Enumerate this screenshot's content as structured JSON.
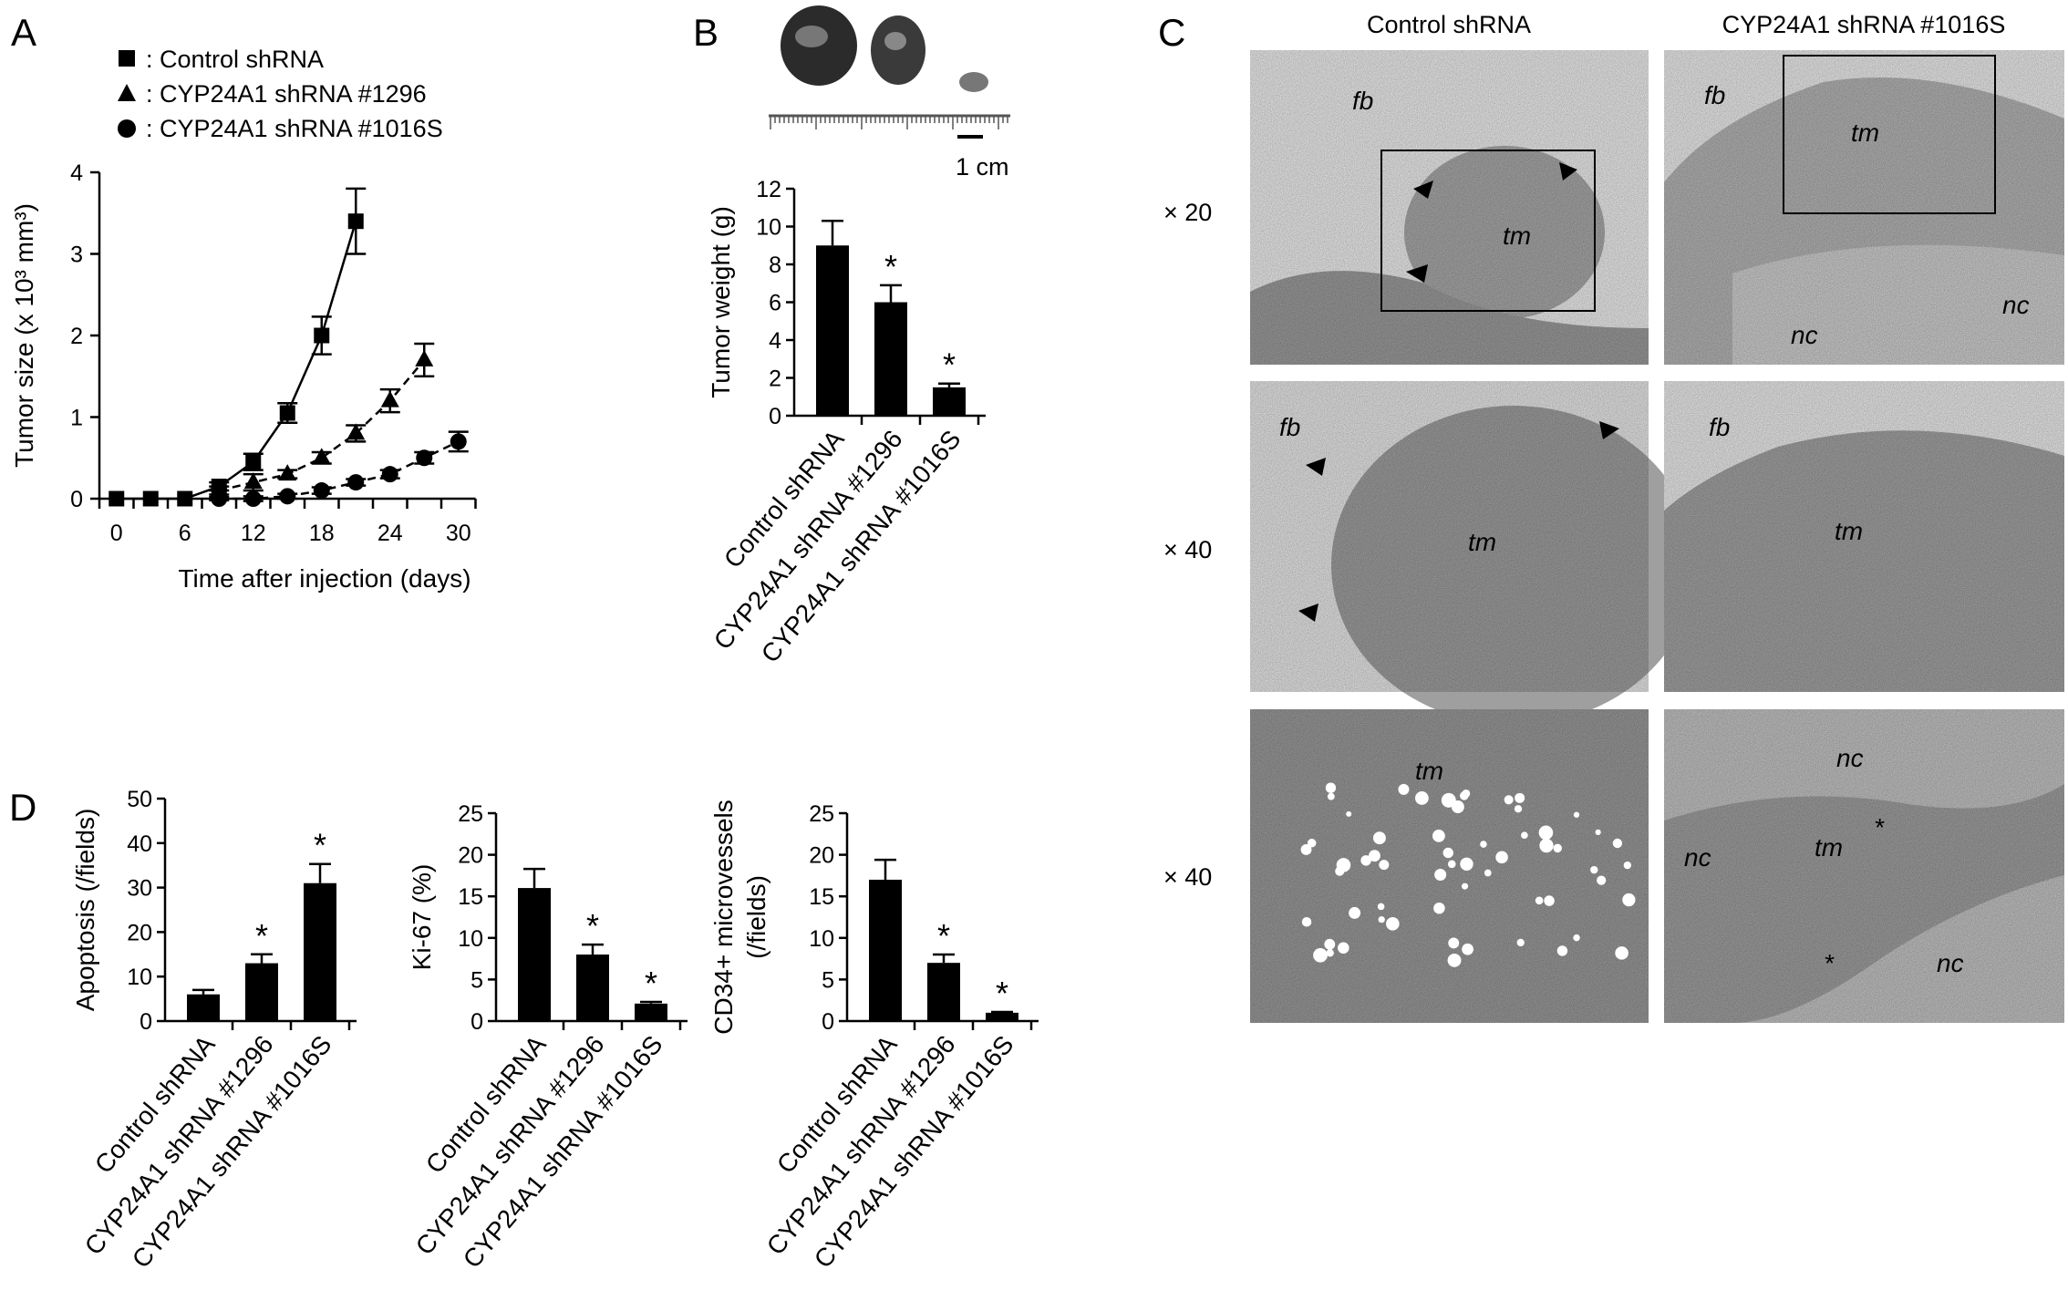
{
  "panels": {
    "a": "A",
    "b": "B",
    "c": "C",
    "d": "D"
  },
  "legend": [
    {
      "marker": "square",
      "label": ": Control shRNA"
    },
    {
      "marker": "triangle",
      "label": ": CYP24A1 shRNA #1296"
    },
    {
      "marker": "circle",
      "label": ": CYP24A1 shRNA #1016S"
    }
  ],
  "scale_bar": "1 cm",
  "histology": {
    "columns": [
      "Control shRNA",
      "CYP24A1 shRNA #1016S"
    ],
    "rows": [
      "× 20",
      "× 40",
      "× 40"
    ],
    "labels": {
      "fb": "fb",
      "tm": "tm",
      "nc": "nc",
      "star": "*"
    }
  },
  "chart_data": [
    {
      "id": "A",
      "type": "line",
      "xlabel": "Time after injection (days)",
      "ylabel": "Tumor size (x 10³ mm³)",
      "xticks": [
        0,
        6,
        12,
        18,
        24,
        30
      ],
      "yticks": [
        0,
        1,
        2,
        3,
        4
      ],
      "ylim": [
        0,
        4
      ],
      "series": [
        {
          "name": "Control shRNA",
          "marker": "square",
          "dash": false,
          "x": [
            0,
            3,
            6,
            9,
            12,
            15,
            18,
            21
          ],
          "y": [
            0,
            0,
            0,
            0.15,
            0.45,
            1.05,
            2.0,
            3.4
          ],
          "err": [
            0,
            0,
            0,
            0.05,
            0.1,
            0.12,
            0.23,
            0.4
          ]
        },
        {
          "name": "CYP24A1 shRNA #1296",
          "marker": "triangle",
          "dash": true,
          "x": [
            9,
            12,
            15,
            18,
            21,
            24,
            27
          ],
          "y": [
            0.1,
            0.2,
            0.3,
            0.5,
            0.8,
            1.2,
            1.7
          ],
          "err": [
            0.05,
            0.1,
            0.05,
            0.07,
            0.1,
            0.14,
            0.2
          ]
        },
        {
          "name": "CYP24A1 shRNA #1016S",
          "marker": "circle",
          "dash": true,
          "x": [
            9,
            12,
            15,
            18,
            21,
            24,
            27,
            30
          ],
          "y": [
            0,
            0,
            0.03,
            0.1,
            0.2,
            0.3,
            0.5,
            0.7
          ],
          "err": [
            0.02,
            0.03,
            0.03,
            0.04,
            0.04,
            0.05,
            0.07,
            0.12
          ]
        }
      ]
    },
    {
      "id": "B",
      "type": "bar",
      "ylabel": "Tumor weight (g)",
      "categories": [
        "Control shRNA",
        "CYP24A1 shRNA #1296",
        "CYP24A1 shRNA #1016S"
      ],
      "values": [
        9,
        6,
        1.5
      ],
      "err": [
        1.3,
        0.9,
        0.2
      ],
      "significance": [
        "",
        "*",
        "*"
      ],
      "yticks": [
        0,
        2,
        4,
        6,
        8,
        10,
        12
      ],
      "ylim": [
        0,
        12
      ]
    },
    {
      "id": "D1",
      "type": "bar",
      "ylabel": "Apoptosis (/fields)",
      "categories": [
        "Control shRNA",
        "CYP24A1 shRNA #1296",
        "CYP24A1 shRNA #1016S"
      ],
      "values": [
        6,
        13,
        31
      ],
      "err": [
        1,
        2,
        4.3
      ],
      "significance": [
        "",
        "*",
        "*"
      ],
      "yticks": [
        0,
        10,
        20,
        30,
        40,
        50
      ],
      "ylim": [
        0,
        50
      ]
    },
    {
      "id": "D2",
      "type": "bar",
      "ylabel": "Ki-67 (%)",
      "categories": [
        "Control shRNA",
        "CYP24A1 shRNA #1296",
        "CYP24A1 shRNA #1016S"
      ],
      "values": [
        16,
        8,
        2.1
      ],
      "err": [
        2.3,
        1.2,
        0.2
      ],
      "significance": [
        "",
        "*",
        "*"
      ],
      "yticks": [
        0,
        5,
        10,
        15,
        20,
        25
      ],
      "ylim": [
        0,
        25
      ]
    },
    {
      "id": "D3",
      "type": "bar",
      "ylabel": [
        "CD34+ microvessels",
        "(/fields)"
      ],
      "categories": [
        "Control shRNA",
        "CYP24A1 shRNA #1296",
        "CYP24A1 shRNA #1016S"
      ],
      "values": [
        17,
        7,
        1
      ],
      "err": [
        2.4,
        1,
        0.1
      ],
      "significance": [
        "",
        "*",
        "*"
      ],
      "yticks": [
        0,
        5,
        10,
        15,
        20,
        25
      ],
      "ylim": [
        0,
        25
      ]
    }
  ]
}
